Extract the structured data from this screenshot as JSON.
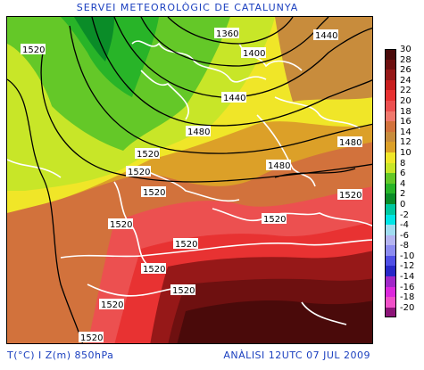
{
  "title": "SERVEI METEOROLÒGIC DE CATALUNYA",
  "footer": {
    "variables": "T(°C) I Z(m) 850hPa",
    "analysis": "ANÀLISI 12UTC 07 JUL 2009"
  },
  "legend": {
    "items": [
      {
        "label": "30",
        "color": "#4a0a0a"
      },
      {
        "label": "28",
        "color": "#6e1010"
      },
      {
        "label": "26",
        "color": "#961818"
      },
      {
        "label": "24",
        "color": "#c81e1e"
      },
      {
        "label": "22",
        "color": "#e83232"
      },
      {
        "label": "20",
        "color": "#ec5050"
      },
      {
        "label": "18",
        "color": "#f0786c"
      },
      {
        "label": "16",
        "color": "#d2723c"
      },
      {
        "label": "14",
        "color": "#c88c3c"
      },
      {
        "label": "12",
        "color": "#dca028"
      },
      {
        "label": "10",
        "color": "#f0e628"
      },
      {
        "label": "8",
        "color": "#c8e628"
      },
      {
        "label": "6",
        "color": "#64c828"
      },
      {
        "label": "4",
        "color": "#28b428"
      },
      {
        "label": "2",
        "color": "#0a8c28"
      },
      {
        "label": "0",
        "color": "#00c8a0"
      },
      {
        "label": "-2",
        "color": "#00e6e6"
      },
      {
        "label": "-4",
        "color": "#a0dcf0"
      },
      {
        "label": "-6",
        "color": "#b4b4f0"
      },
      {
        "label": "-8",
        "color": "#8c8cf0"
      },
      {
        "label": "-10",
        "color": "#5050e6"
      },
      {
        "label": "-12",
        "color": "#2828c8"
      },
      {
        "label": "-14",
        "color": "#a028c8"
      },
      {
        "label": "-16",
        "color": "#dc28dc"
      },
      {
        "label": "-18",
        "color": "#f050c8"
      },
      {
        "label": "-20",
        "color": "#8c1478"
      }
    ]
  },
  "contour_labels": [
    "1360",
    "1400",
    "1440",
    "1440",
    "1480",
    "1480",
    "1480",
    "1520",
    "1520",
    "1520",
    "1520",
    "1520",
    "1520",
    "1520",
    "1520",
    "1520",
    "1520",
    "1520",
    "1520"
  ]
}
